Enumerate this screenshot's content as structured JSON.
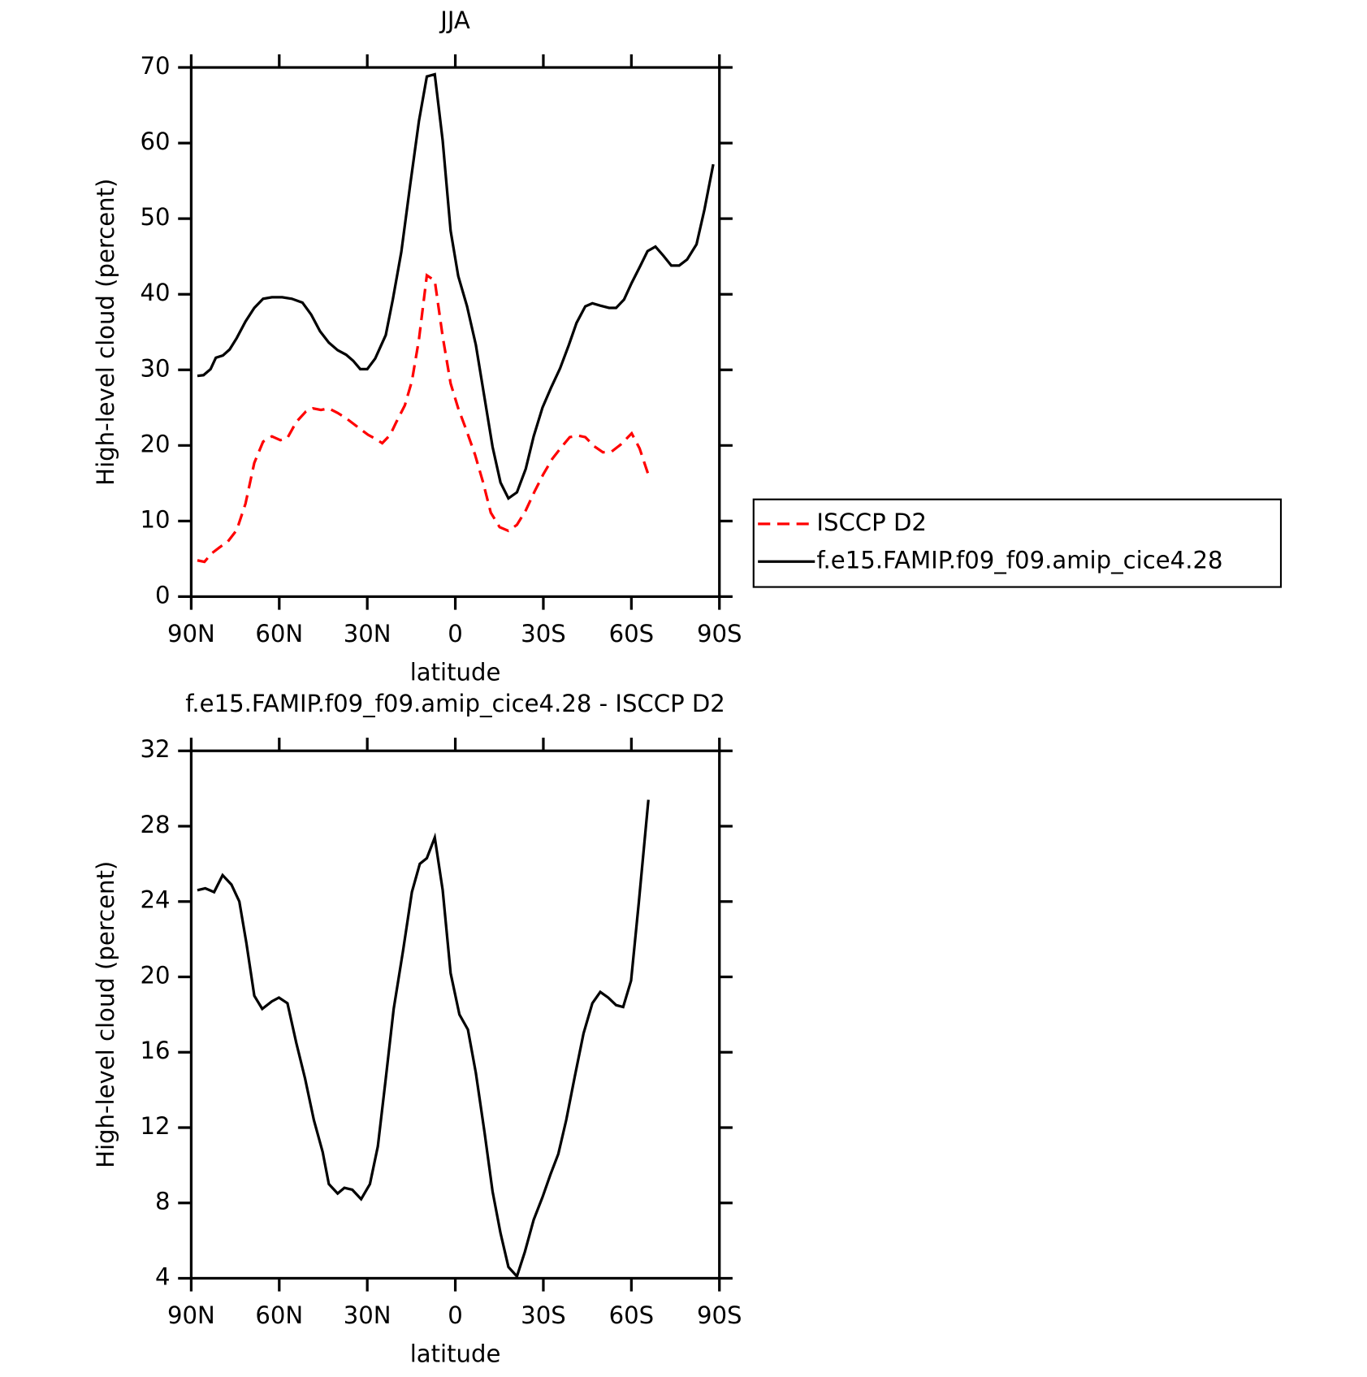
{
  "chart_data": [
    {
      "type": "line",
      "title": "JJA",
      "x_label": "latitude",
      "y_label": "High-level cloud (percent)",
      "xlim": [
        90,
        -90
      ],
      "ylim": [
        0,
        70
      ],
      "xticks": [
        {
          "value": 90,
          "label": "90N"
        },
        {
          "value": 60,
          "label": "60N"
        },
        {
          "value": 30,
          "label": "30N"
        },
        0,
        {
          "value": -30,
          "label": "30S"
        },
        {
          "value": -60,
          "label": "60S"
        },
        {
          "value": -90,
          "label": "90S"
        }
      ],
      "yticks": [
        0,
        10,
        20,
        30,
        40,
        50,
        60,
        70
      ],
      "legend": "right",
      "series": [
        {
          "name": "ISCCP D2",
          "color": "#ff0000",
          "line_style": "dashed",
          "x": [
            87.9,
            85.5,
            83.1,
            80.4,
            77.5,
            74.5,
            71.5,
            68.5,
            65.5,
            62.5,
            59.6,
            57.2,
            54.2,
            50.9,
            48.5,
            45.8,
            43.1,
            40.1,
            37.2,
            34.5,
            31.8,
            29.7,
            27.3,
            24.9,
            22.2,
            20.1,
            17.2,
            14.8,
            12.4,
            9.7,
            7.0,
            4.3,
            1.6,
            -1.0,
            -3.7,
            -6.7,
            -9.4,
            -12.1,
            -15.1,
            -18.1,
            -21.0,
            -24.0,
            -27.0,
            -30.0,
            -33.0,
            -36.0,
            -39.0,
            -41.9,
            -44.3,
            -47.3,
            -50.3,
            -53.3,
            -56.3,
            -58.1,
            -60.1,
            -62.8,
            -65.8
          ],
          "values": [
            4.8,
            4.6,
            5.7,
            6.5,
            7.3,
            8.8,
            12.3,
            17.7,
            20.5,
            21.2,
            20.7,
            21.0,
            23.1,
            24.5,
            24.9,
            24.7,
            24.9,
            24.3,
            23.6,
            22.8,
            22.0,
            21.4,
            20.9,
            20.3,
            21.4,
            23.1,
            25.3,
            28.5,
            34.0,
            42.5,
            41.8,
            34.4,
            28.2,
            24.9,
            22.1,
            18.8,
            15.2,
            11.1,
            9.2,
            8.7,
            9.5,
            11.4,
            13.9,
            16.2,
            18.2,
            19.7,
            21.1,
            21.3,
            21.1,
            19.9,
            19.1,
            19.2,
            20.1,
            20.8,
            21.6,
            19.6,
            16.1
          ]
        },
        {
          "name": "f.e15.FAMIP.f09_f09.amip_cice4.28",
          "color": "#000000",
          "line_style": "solid",
          "x": [
            87.9,
            85.8,
            83.4,
            81.6,
            79.2,
            76.9,
            74.5,
            71.5,
            68.5,
            65.5,
            62.5,
            59.0,
            55.7,
            52.1,
            49.1,
            46.1,
            43.1,
            40.1,
            37.2,
            34.8,
            32.4,
            30.0,
            27.3,
            23.7,
            21.3,
            18.4,
            15.4,
            12.4,
            9.7,
            7.0,
            4.3,
            1.6,
            -1.0,
            -4.0,
            -7.0,
            -10.0,
            -12.7,
            -15.4,
            -18.1,
            -21.0,
            -24.0,
            -26.7,
            -29.7,
            -32.7,
            -35.7,
            -38.7,
            -41.3,
            -44.3,
            -46.7,
            -49.4,
            -52.4,
            -54.8,
            -57.5,
            -60.1,
            -63.1,
            -65.5,
            -68.2,
            -70.9,
            -73.6,
            -76.3,
            -79.0,
            -82.2,
            -84.9,
            -87.9
          ],
          "values": [
            29.2,
            29.3,
            30.1,
            31.6,
            31.9,
            32.7,
            34.2,
            36.4,
            38.2,
            39.4,
            39.6,
            39.6,
            39.4,
            38.9,
            37.3,
            35.1,
            33.6,
            32.6,
            32.0,
            31.2,
            30.1,
            30.1,
            31.5,
            34.6,
            39.3,
            45.6,
            54.4,
            62.9,
            68.8,
            69.1,
            60.3,
            48.4,
            42.4,
            38.4,
            33.3,
            26.2,
            19.8,
            15.1,
            13.0,
            13.8,
            16.9,
            21.2,
            25.0,
            27.7,
            30.2,
            33.3,
            36.2,
            38.4,
            38.8,
            38.5,
            38.2,
            38.2,
            39.3,
            41.5,
            43.8,
            45.7,
            46.3,
            45.1,
            43.8,
            43.8,
            44.6,
            46.6,
            51.2,
            57.2
          ]
        }
      ]
    },
    {
      "type": "line",
      "title": "f.e15.FAMIP.f09_f09.amip_cice4.28 - ISCCP D2",
      "x_label": "latitude",
      "y_label": "High-level cloud (percent)",
      "xlim": [
        90,
        -90
      ],
      "ylim": [
        4,
        32
      ],
      "xticks": [
        {
          "value": 90,
          "label": "90N"
        },
        {
          "value": 60,
          "label": "60N"
        },
        {
          "value": 30,
          "label": "30N"
        },
        0,
        {
          "value": -30,
          "label": "30S"
        },
        {
          "value": -60,
          "label": "60S"
        },
        {
          "value": -90,
          "label": "90S"
        }
      ],
      "yticks": [
        4,
        8,
        12,
        16,
        20,
        24,
        28,
        32
      ],
      "color": "#000000",
      "line_style": "solid",
      "x": [
        87.9,
        85.2,
        82.2,
        79.3,
        76.3,
        73.6,
        71.2,
        68.5,
        65.8,
        62.5,
        60.1,
        57.2,
        54.2,
        51.2,
        48.2,
        45.2,
        43.1,
        40.1,
        37.8,
        35.1,
        32.1,
        29.1,
        26.4,
        23.7,
        21.0,
        17.8,
        14.8,
        12.1,
        9.7,
        7.0,
        4.3,
        1.6,
        -1.4,
        -4.3,
        -7.0,
        -10.0,
        -12.7,
        -15.4,
        -18.1,
        -21.0,
        -23.7,
        -26.7,
        -29.7,
        -32.4,
        -35.1,
        -37.8,
        -40.7,
        -43.7,
        -46.7,
        -49.4,
        -52.1,
        -54.8,
        -57.2,
        -59.9,
        -62.5,
        -65.8
      ],
      "values": [
        24.6,
        24.7,
        24.5,
        25.4,
        24.9,
        24.0,
        21.8,
        19.0,
        18.3,
        18.7,
        18.9,
        18.6,
        16.5,
        14.6,
        12.4,
        10.7,
        9.0,
        8.5,
        8.8,
        8.7,
        8.2,
        9.0,
        11.0,
        14.6,
        18.3,
        21.4,
        24.5,
        26.0,
        26.3,
        27.4,
        24.6,
        20.2,
        18.0,
        17.2,
        14.9,
        11.7,
        8.6,
        6.4,
        4.6,
        4.1,
        5.4,
        7.1,
        8.3,
        9.5,
        10.6,
        12.4,
        14.7,
        17.0,
        18.6,
        19.2,
        18.9,
        18.5,
        18.4,
        19.8,
        23.9,
        29.4
      ]
    }
  ]
}
